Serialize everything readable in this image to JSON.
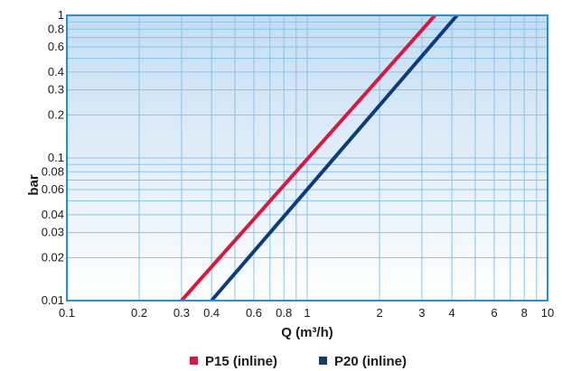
{
  "chart_data": {
    "type": "line",
    "xscale": "log",
    "yscale": "log",
    "xlim": [
      0.1,
      10
    ],
    "ylim": [
      0.01,
      1
    ],
    "xlabel": "Q (m³/h)",
    "ylabel": "bar",
    "grid": true,
    "legend_position": "bottom",
    "x_ticks": [
      0.1,
      0.2,
      0.3,
      0.4,
      0.6,
      0.8,
      1,
      2,
      3,
      4,
      6,
      8,
      10
    ],
    "x_tick_labels": [
      "0.1",
      "0.2",
      "0.3",
      "0.4",
      "0.6",
      "0.8",
      "1",
      "2",
      "3",
      "4",
      "6",
      "8",
      "10"
    ],
    "y_ticks": [
      0.01,
      0.02,
      0.03,
      0.04,
      0.06,
      0.08,
      0.1,
      0.2,
      0.3,
      0.4,
      0.6,
      0.8,
      1
    ],
    "y_tick_labels": [
      "0.01",
      "0.02",
      "0.03",
      "0.04",
      "0.06",
      "0.08",
      "0.1",
      "0.2",
      "0.3",
      "0.4",
      "0.6",
      "0.8",
      "1"
    ],
    "series": [
      {
        "name": "P15 (inline)",
        "color": "#d7193f",
        "x": [
          0.3,
          3.4
        ],
        "y": [
          0.01,
          1
        ]
      },
      {
        "name": "P20 (inline)",
        "color": "#0b3c7d",
        "x": [
          0.4,
          4.2
        ],
        "y": [
          0.01,
          1
        ]
      }
    ]
  },
  "colors": {
    "frame": "#2a8fcf",
    "grid": "#8ac3e8",
    "plot_top": "#c4ddf3",
    "plot_bottom": "#ffffff"
  }
}
